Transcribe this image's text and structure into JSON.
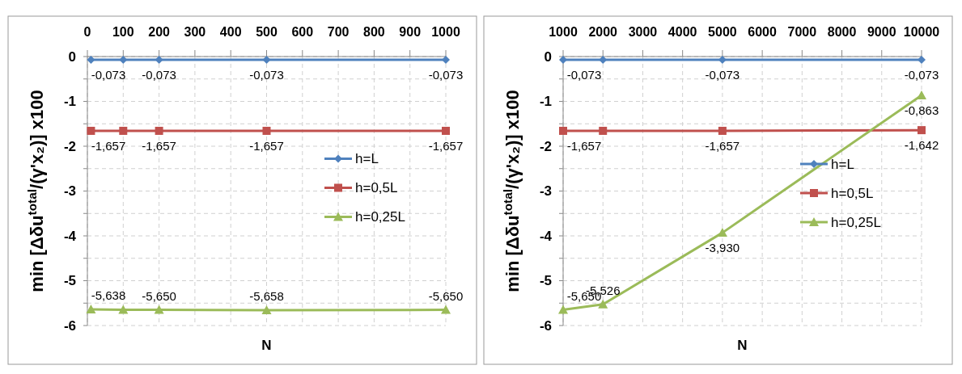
{
  "chart_data": [
    {
      "type": "line",
      "xlabel": "N",
      "ylabel": "min  [Δδu$^{total}$/(γ'x₂)]   x100",
      "x": [
        10,
        100,
        200,
        500,
        1000
      ],
      "xlim": [
        0,
        1000
      ],
      "xticks": [
        0,
        100,
        200,
        300,
        400,
        500,
        600,
        700,
        800,
        900,
        1000
      ],
      "ylim": [
        -6,
        0
      ],
      "yticks": [
        0,
        {
          "value": -0.5,
          "label": null
        },
        -1,
        {
          "value": -1.5,
          "label": null
        },
        -2,
        {
          "value": -2.5,
          "label": null
        },
        -3,
        {
          "value": -3.5,
          "label": null
        },
        -4,
        {
          "value": -4.5,
          "label": null
        },
        -5,
        {
          "value": -5.5,
          "label": null
        },
        -6
      ],
      "grid": true,
      "legend": "right",
      "series": [
        {
          "name": "h=L",
          "color": "#4f81bd",
          "marker": "diamond",
          "values": [
            -0.073,
            -0.073,
            -0.073,
            -0.073,
            -0.073
          ],
          "value_labels": [
            "-0,073",
            null,
            "-0,073",
            "-0,073",
            "-0,073"
          ]
        },
        {
          "name": "h=0,5L",
          "color": "#c0504d",
          "marker": "square",
          "values": [
            -1.657,
            -1.657,
            -1.657,
            -1.657,
            -1.657
          ],
          "value_labels": [
            "-1,657",
            null,
            "-1,657",
            "-1,657",
            "-1,657"
          ]
        },
        {
          "name": "h=0,25L",
          "color": "#9bbb59",
          "marker": "triangle",
          "values": [
            -5.638,
            -5.65,
            -5.65,
            -5.658,
            -5.65
          ],
          "value_labels": [
            "-5,638",
            null,
            "-5,650",
            "-5,658",
            "-5,650"
          ]
        }
      ]
    },
    {
      "type": "line",
      "xlabel": "N",
      "ylabel": "min  [Δδu$^{total}$/(γ'x₂)]   x100",
      "x": [
        1000,
        2000,
        5000,
        10000
      ],
      "xlim": [
        1000,
        10000
      ],
      "xticks": [
        1000,
        2000,
        3000,
        4000,
        5000,
        6000,
        7000,
        8000,
        9000,
        10000
      ],
      "ylim": [
        -6,
        0
      ],
      "yticks": [
        0,
        {
          "value": -0.5,
          "label": null
        },
        -1,
        {
          "value": -1.5,
          "label": null
        },
        -2,
        {
          "value": -2.5,
          "label": null
        },
        -3,
        {
          "value": -3.5,
          "label": null
        },
        -4,
        {
          "value": -4.5,
          "label": null
        },
        -5,
        {
          "value": -5.5,
          "label": null
        },
        -6
      ],
      "grid": true,
      "legend": "bottom right",
      "series": [
        {
          "name": "h=L",
          "color": "#4f81bd",
          "marker": "diamond",
          "values": [
            -0.073,
            -0.073,
            -0.073,
            -0.073
          ],
          "value_labels": [
            "-0,073",
            null,
            "-0,073",
            "-0,073"
          ]
        },
        {
          "name": "h=0,5L",
          "color": "#c0504d",
          "marker": "square",
          "values": [
            -1.657,
            -1.657,
            -1.657,
            -1.642
          ],
          "value_labels": [
            "-1,657",
            null,
            "-1,657",
            "-1,642"
          ]
        },
        {
          "name": "h=0,25L",
          "color": "#9bbb59",
          "marker": "triangle",
          "values": [
            -5.65,
            -5.526,
            -3.93,
            -0.863
          ],
          "value_labels": [
            "-5,650",
            "-5,526",
            "-3,930",
            "-0,863"
          ]
        }
      ]
    }
  ]
}
